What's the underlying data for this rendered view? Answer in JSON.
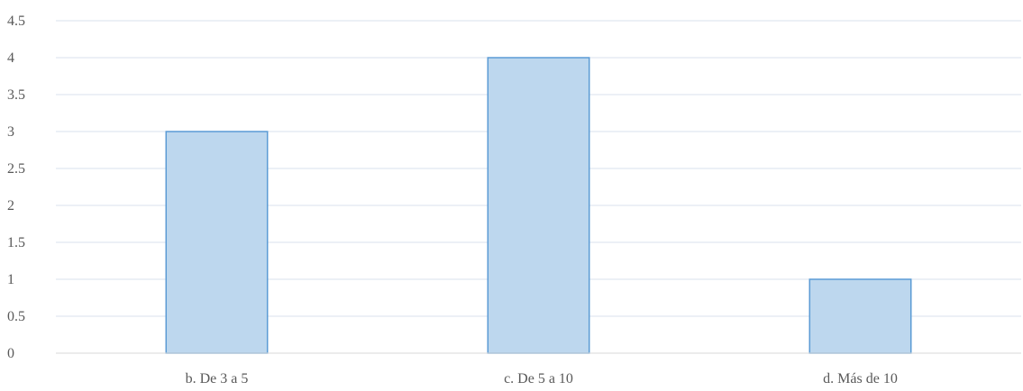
{
  "chart_data": {
    "type": "bar",
    "categories": [
      "b. De 3 a 5",
      "c. De 5 a 10",
      "d. Más de 10"
    ],
    "values": [
      3,
      4,
      1
    ],
    "title": "",
    "xlabel": "",
    "ylabel": "",
    "ylim": [
      0,
      4.5
    ],
    "yticks": [
      "0",
      "0.5",
      "1",
      "1.5",
      "2",
      "2.5",
      "3",
      "3.5",
      "4",
      "4.5"
    ],
    "grid": true,
    "legend": "none",
    "colors": {
      "bar_fill": "#bdd7ee",
      "bar_stroke": "#5b9bd5",
      "grid": "#d9e2ec",
      "text": "#595959"
    }
  }
}
